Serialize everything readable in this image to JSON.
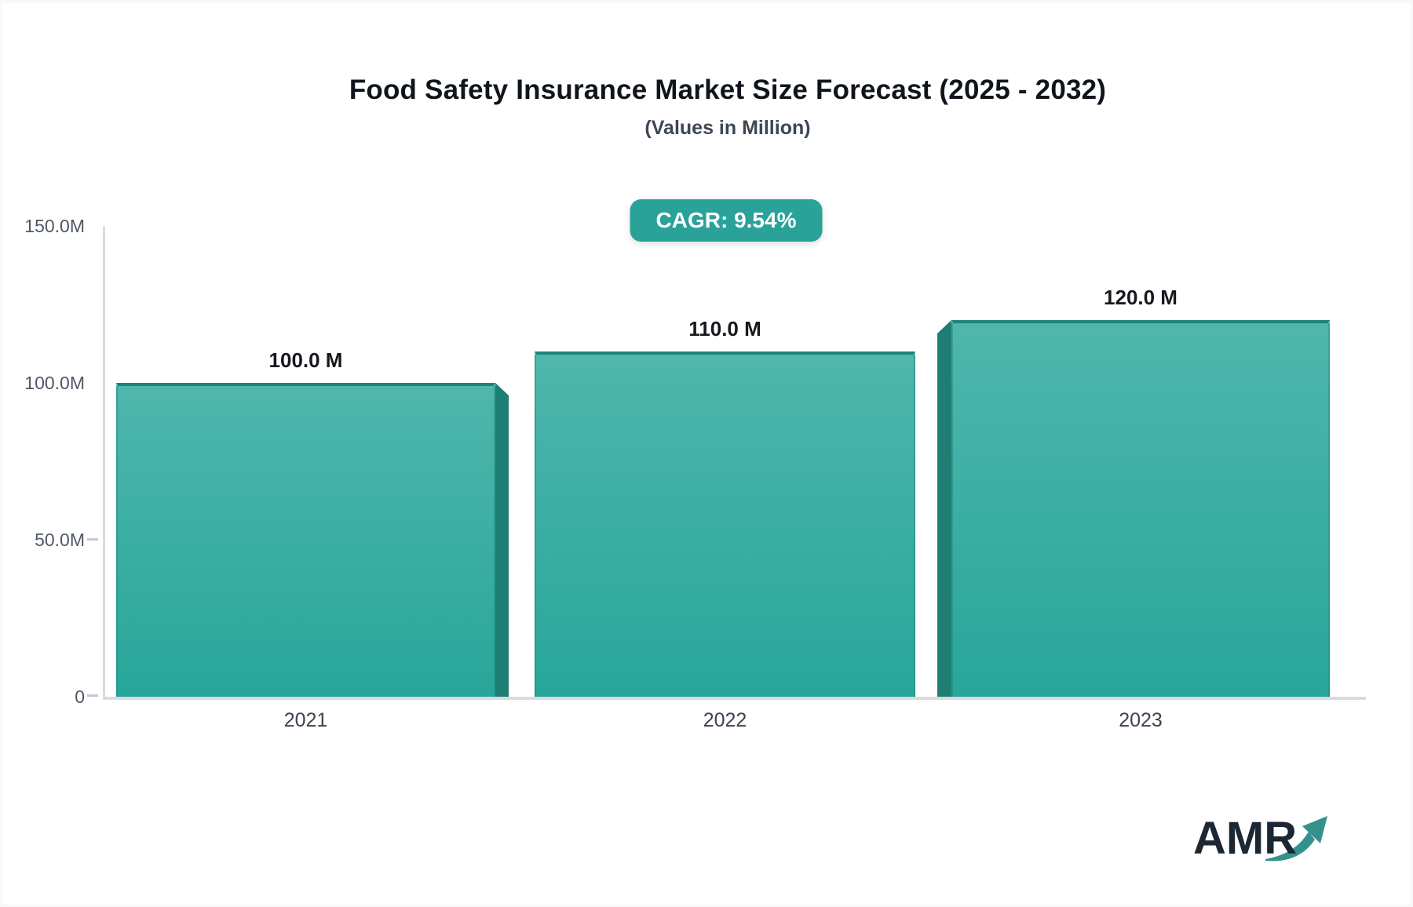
{
  "page": {
    "page_background": "#f6f8fa",
    "card_background": "#ffffff"
  },
  "header": {
    "title": "Food Safety Insurance Market Size Forecast (2025 - 2032)",
    "subtitle": "(Values in Million)"
  },
  "badge": {
    "label": "CAGR: 9.54%",
    "background": "#2aa29a",
    "text_color": "#ffffff"
  },
  "chart_data": {
    "type": "bar",
    "title": "Food Safety Insurance Market Size Forecast (2025 - 2032)",
    "subtitle": "(Values in Million)",
    "unit": "Million",
    "cagr": "9.54%",
    "categories": [
      "2021",
      "2022",
      "2023"
    ],
    "values": [
      100.0,
      110.0,
      120.0
    ],
    "value_labels": [
      "100.0 M",
      "110.0 M",
      "120.0 M"
    ],
    "y_ticks": [
      "150.0M",
      "100.0M",
      "50.0M",
      "0"
    ],
    "y_tick_values": [
      150,
      100,
      50,
      0
    ],
    "ylim": [
      0,
      150
    ],
    "grid": "off",
    "legend": "none",
    "bar_face_top_color": "#4fb6ac",
    "bar_face_bottom_color": "#28a69a",
    "bar_side_color": "#1f7e73",
    "bar_top_edge_color": "#1e8478",
    "axis_color": "#d8dbe0"
  },
  "logo": {
    "text": "AMR",
    "text_color": "#1b2733",
    "arrow_color": "#35918c"
  }
}
